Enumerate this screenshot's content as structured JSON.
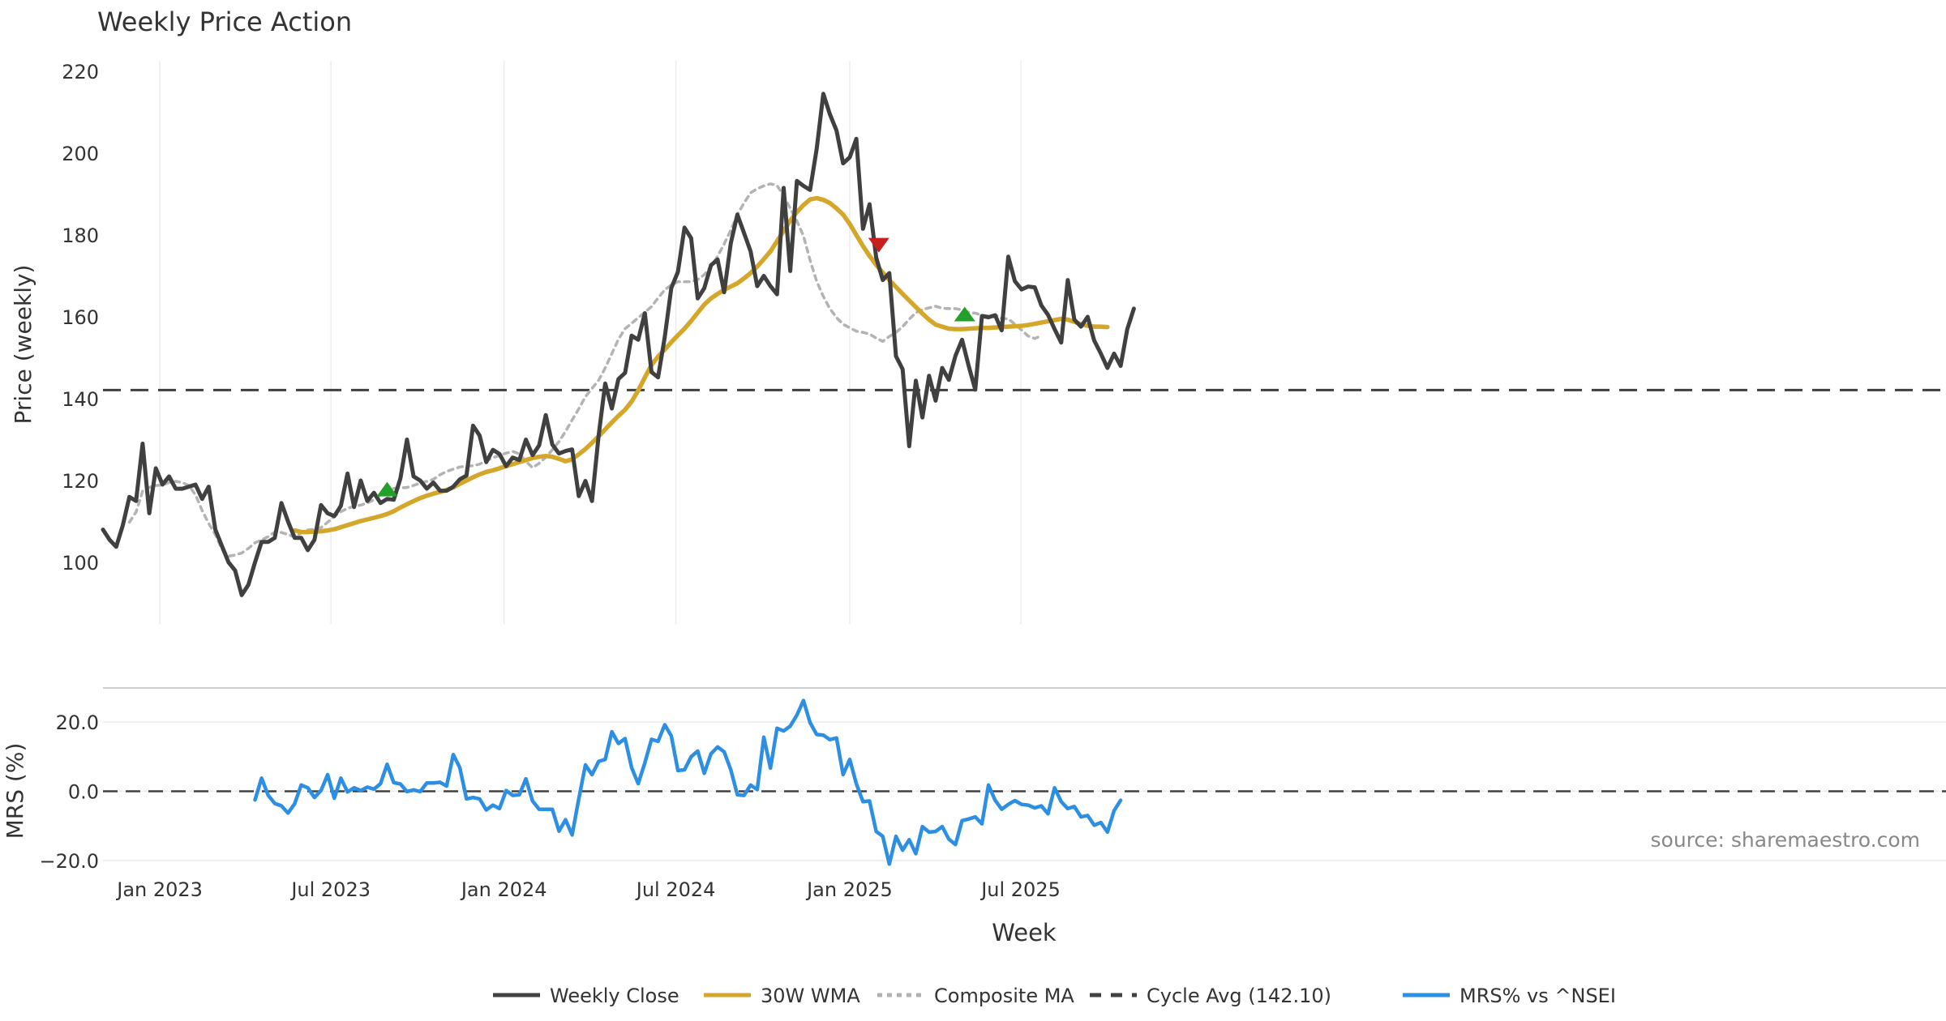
{
  "chart_data": [
    {
      "type": "line",
      "title": "Weekly Price Action",
      "xlabel": "Week",
      "ylabel": "Price (weekly)",
      "ylim": [
        84,
        220
      ],
      "yticks": [
        100,
        120,
        140,
        160,
        180,
        200,
        220
      ],
      "xticks": [
        {
          "label": "Jan 2023",
          "week": 8.6
        },
        {
          "label": "Jul 2023",
          "week": 34.5
        },
        {
          "label": "Jan 2024",
          "week": 60.7
        },
        {
          "label": "Jul 2024",
          "week": 86.7
        },
        {
          "label": "Jan 2025",
          "week": 113
        },
        {
          "label": "Jul 2025",
          "week": 138.9
        }
      ],
      "grid": "vertical",
      "series": [
        {
          "name": "Weekly Close",
          "color": "#404040",
          "style": "solid",
          "start_week": 0,
          "values": [
            108,
            105.5,
            103.8,
            109,
            116,
            115,
            129,
            112,
            123,
            119,
            121,
            118,
            118,
            118.5,
            119,
            115.5,
            118.5,
            108,
            104,
            100,
            98,
            92,
            94.5,
            100,
            105,
            105,
            106,
            114.5,
            110,
            106,
            106,
            103,
            105.5,
            114,
            112,
            111.3,
            113.8,
            121.7,
            113.5,
            120,
            115,
            117,
            114.5,
            115.5,
            115.3,
            120.5,
            130,
            121,
            120,
            118,
            119.5,
            117.5,
            117.5,
            118.5,
            120.3,
            121.2,
            133.4,
            131,
            124.5,
            127.5,
            126.5,
            123.5,
            125.6,
            125,
            130,
            126.2,
            128.6,
            136,
            128.8,
            126.6,
            127.2,
            127.6,
            116.2,
            119.9,
            115,
            131,
            143.7,
            137.6,
            144.8,
            146.3,
            155.4,
            154.4,
            160.9,
            146.5,
            145.2,
            155,
            167,
            171,
            181.8,
            179.2,
            164.5,
            167,
            172.6,
            174,
            166,
            178,
            185,
            180.5,
            176,
            167.5,
            170,
            167.5,
            165.5,
            191.5,
            171.2,
            193.2,
            192,
            191,
            201,
            214.5,
            209.5,
            205.5,
            197.5,
            199,
            203.5,
            181.5,
            187.5,
            174.5,
            169,
            170.7,
            150.4,
            147.2,
            128.4,
            144.4,
            135.4,
            145.6,
            139.5,
            147.5,
            144.6,
            150.5,
            154.4,
            148,
            142.2,
            160.2,
            159.9,
            160.4,
            156.7,
            174.7,
            168.7,
            166.7,
            167.4,
            167.2,
            162.8,
            160.5,
            157,
            153.7,
            169,
            159.3,
            157.6,
            160,
            154.2,
            151,
            147.5,
            151,
            148,
            157,
            162
          ]
        },
        {
          "name": "30W WMA",
          "color": "#D4A62A",
          "style": "solid",
          "start_week": 29,
          "values": [
            107.8,
            107.4,
            107.4,
            107.5,
            107.6,
            107.8,
            108.1,
            108.6,
            109.1,
            109.6,
            110.1,
            110.5,
            110.9,
            111.3,
            111.8,
            112.5,
            113.4,
            114.2,
            115,
            115.7,
            116.3,
            116.8,
            117.2,
            117.7,
            118.3,
            119.2,
            120,
            120.8,
            121.5,
            122.1,
            122.5,
            123,
            123.5,
            124,
            124.5,
            125,
            125.5,
            125.8,
            126,
            125.8,
            125.3,
            124.7,
            125.2,
            126.4,
            127.7,
            129.2,
            130.8,
            132.5,
            134.2,
            135.8,
            137.3,
            139.3,
            142,
            145.2,
            148.2,
            150.3,
            152,
            153.8,
            155.5,
            157.1,
            159,
            161,
            163,
            164.5,
            165.6,
            166.6,
            167.4,
            168.2,
            169.4,
            170.7,
            172.3,
            174.1,
            176,
            178.5,
            181,
            183.5,
            185.6,
            187.3,
            188.7,
            189,
            188.6,
            187.8,
            186.5,
            185,
            182.7,
            180,
            177.3,
            174.9,
            172.7,
            170.8,
            169,
            167.3,
            165.6,
            164,
            162.4,
            160.8,
            159.3,
            158.1,
            157.6,
            157.1,
            157,
            157,
            157.1,
            157.2,
            157.3,
            157.3,
            157.4,
            157.5,
            157.6,
            157.7,
            157.8,
            158,
            158.3,
            158.6,
            158.9,
            159.2,
            159.5,
            159.3,
            158.8,
            158.2,
            157.8,
            157.6,
            157.6,
            157.5
          ]
        },
        {
          "name": "Composite MA",
          "color": "#B3B3B3",
          "style": "dotted",
          "start_week": 4,
          "values": [
            109.8,
            112.3,
            117.4,
            118.3,
            118.8,
            118.9,
            119.5,
            119.8,
            119.5,
            118.8,
            116.5,
            112.7,
            109.5,
            106.8,
            103.2,
            101.5,
            101.8,
            102.3,
            103.4,
            104.8,
            105.5,
            106.3,
            107.4,
            107.3,
            106.8,
            106.2,
            107.2,
            107.9,
            108.1,
            108.5,
            109.8,
            111.2,
            112.4,
            113.2,
            113.7,
            114,
            114.5,
            115.3,
            116.5,
            117.4,
            118.1,
            118.2,
            118.3,
            118.8,
            119.4,
            119.8,
            120.3,
            121.4,
            122.2,
            122.8,
            123.3,
            123.5,
            123.6,
            124,
            124.8,
            125.6,
            126.1,
            126.7,
            127.1,
            126.5,
            124.7,
            123.1,
            124.2,
            125.7,
            127.5,
            129.5,
            132,
            134.8,
            137.5,
            140.5,
            142.5,
            144.5,
            147.5,
            151,
            154.5,
            157.1,
            158.4,
            159.8,
            161.1,
            162.5,
            164.6,
            166.6,
            167.8,
            168.6,
            168.6,
            168.6,
            169.1,
            170.3,
            172.3,
            174.8,
            177.8,
            181.2,
            185,
            187.8,
            190.3,
            191.3,
            192,
            192.5,
            192.1,
            189.6,
            186.5,
            183.4,
            179.8,
            173.8,
            168.7,
            165,
            162,
            159.8,
            158.2,
            157.3,
            156.5,
            156.2,
            155.8,
            154.8,
            154,
            155.2,
            156.2,
            157.6,
            159.4,
            161,
            161.8,
            162.2,
            162.6,
            162.1,
            162,
            162,
            161.7,
            161.1,
            160.9,
            160.4,
            160.2,
            160.5,
            159.6,
            159.5,
            158.2,
            156.8,
            155.3,
            154.7,
            155.4
          ]
        },
        {
          "name": "Cycle Avg (142.10)",
          "color": "#404040",
          "style": "dashed",
          "constant": 142.1
        }
      ],
      "markers": [
        {
          "type": "buy",
          "week": 43,
          "value": 117.9,
          "color": "#22A02A"
        },
        {
          "type": "sell",
          "week": 117.4,
          "value": 177.5,
          "color": "#C81E1E"
        },
        {
          "type": "buy",
          "week": 130.4,
          "value": 160.7,
          "color": "#22A02A"
        }
      ]
    },
    {
      "type": "line",
      "ylabel": "MRS (%)",
      "ylim": [
        -23,
        30
      ],
      "yticks": [
        -20.0,
        0.0,
        20.0
      ],
      "tick_labels": [
        "−20.0",
        "0.0",
        "20.0"
      ],
      "annotation": "source: sharemaestro.com",
      "series": [
        {
          "name": "MRS% vs ^NSEI",
          "color": "#2D8FE3",
          "style": "solid",
          "start_week": 23,
          "values": [
            -2.5,
            3.8,
            -1.2,
            -3.5,
            -4.2,
            -6.3,
            -3.6,
            1.8,
            1.0,
            -1.8,
            0.2,
            4.8,
            -2.0,
            3.8,
            -0.2,
            1.0,
            0.2,
            1.2,
            0.6,
            2.2,
            7.8,
            2.5,
            2.1,
            -0.1,
            0.4,
            -0.1,
            2.4,
            2.4,
            2.6,
            1.5,
            10.6,
            6.8,
            -2.2,
            -1.8,
            -2.2,
            -5.4,
            -4.0,
            -5.0,
            0.2,
            -1.2,
            -1.0,
            3.6,
            -2.8,
            -5.2,
            -5.2,
            -5.2,
            -11.5,
            -8.2,
            -12.6,
            -2.2,
            7.6,
            4.8,
            8.6,
            9.2,
            17.2,
            13.8,
            15.2,
            6.8,
            2.2,
            8.2,
            15.0,
            14.4,
            19.2,
            16.0,
            6.0,
            6.2,
            10.0,
            11.6,
            5.2,
            10.8,
            12.8,
            11.4,
            6.2,
            -1.0,
            -1.2,
            1.8,
            0.5,
            15.6,
            6.7,
            18.2,
            17.4,
            18.8,
            22.0,
            26.2,
            19.8,
            16.4,
            16.2,
            14.9,
            15.4,
            4.8,
            9.2,
            2.2,
            -3.0,
            -2.8,
            -11.6,
            -13.0,
            -21.0,
            -13.0,
            -17.0,
            -14.0,
            -18.0,
            -10.2,
            -11.8,
            -11.6,
            -10.2,
            -13.8,
            -15.4,
            -8.5,
            -8.0,
            -7.4,
            -9.4,
            1.8,
            -2.6,
            -5.2,
            -3.8,
            -2.7,
            -3.8,
            -4.0,
            -4.8,
            -4.2,
            -6.5,
            1.0,
            -3.0,
            -5.0,
            -4.4,
            -7.4,
            -7.0,
            -9.8,
            -9.0,
            -11.8,
            -5.6,
            -2.6
          ]
        }
      ]
    }
  ],
  "legend": {
    "items": [
      {
        "label": "Weekly Close",
        "color": "#404040",
        "style": "solid"
      },
      {
        "label": "30W WMA",
        "color": "#D4A62A",
        "style": "solid"
      },
      {
        "label": "Composite MA",
        "color": "#B3B3B3",
        "style": "dotted"
      },
      {
        "label": "Cycle Avg (142.10)",
        "color": "#404040",
        "style": "dashed"
      },
      {
        "label": "MRS% vs ^NSEI",
        "color": "#2D8FE3",
        "style": "solid"
      }
    ]
  }
}
